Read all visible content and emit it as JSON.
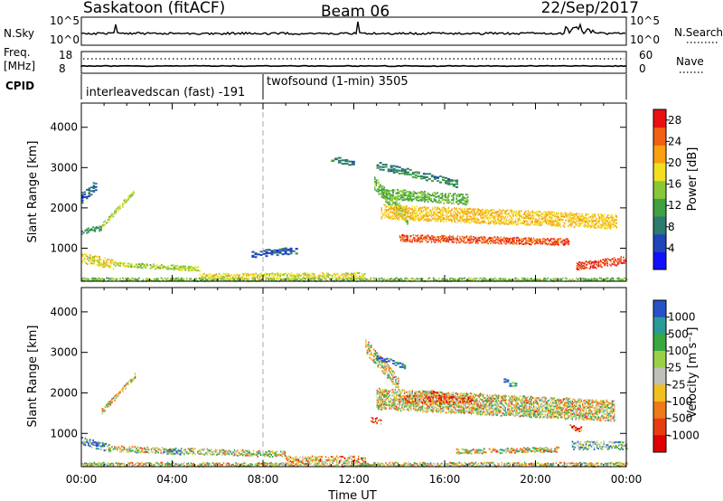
{
  "header": {
    "site_title": "Saskatoon (fitACF)",
    "beam": "Beam 06",
    "date": "22/Sep/2017"
  },
  "nsky_panel": {
    "left_label": "N.Sky",
    "right_label": "N.Search",
    "left_ticks": [
      "10^5",
      "10^0"
    ],
    "right_ticks": [
      "10^5",
      "10^0"
    ]
  },
  "freq_panel": {
    "left_label_line1": "Freq.",
    "left_label_line2": "[MHz]",
    "left_ticks": [
      "18",
      "8"
    ],
    "right_ticks": [
      "60",
      "0"
    ],
    "right_label": "Nave"
  },
  "cpid_panel": {
    "label": "CPID",
    "segments": [
      {
        "name": "interleavedscan (fast) -191",
        "start_hour": 0
      },
      {
        "name": "twofsound (1-min) 3505",
        "start_hour": 8
      }
    ]
  },
  "colors": {
    "power_scale": [
      "#1010ff",
      "#1f45b8",
      "#2c7a70",
      "#3fa040",
      "#88c838",
      "#f0e020",
      "#f8a010",
      "#f06010",
      "#e81010"
    ],
    "velocity_scale": [
      "#2850c8",
      "#2a9a98",
      "#3aa840",
      "#9ad048",
      "#c0c0b8",
      "#f0c020",
      "#f07818",
      "#e83c10",
      "#e00000"
    ]
  },
  "chart_data": [
    {
      "type": "heatmap",
      "name": "power",
      "xlabel": "",
      "ylabel": "Slant Range [km]",
      "x_unit": "hour UT",
      "xlim": [
        0,
        24
      ],
      "ylim": [
        180,
        4600
      ],
      "y_ticks": [
        1000,
        2000,
        3000,
        4000
      ],
      "colorbar": {
        "label": "Power [dB]",
        "ticks": [
          "4",
          "8",
          "12",
          "16",
          "20",
          "24",
          "28"
        ],
        "range": [
          0,
          30
        ]
      },
      "features": [
        {
          "t0": 0.0,
          "t1": 24.0,
          "r_start": 180,
          "r_end": 180,
          "width": 160,
          "value": 14,
          "step": 0.06
        },
        {
          "t0": 0.0,
          "t1": 0.9,
          "r_start": 1400,
          "r_end": 1500,
          "width": 140,
          "value": 10,
          "step": 0.07
        },
        {
          "t0": 0.9,
          "t1": 2.4,
          "r_start": 1550,
          "r_end": 2450,
          "width": 120,
          "value": 16,
          "step": 0.06
        },
        {
          "t0": 0.0,
          "t1": 0.7,
          "r_start": 2250,
          "r_end": 2600,
          "width": 250,
          "value": 6,
          "step": 0.1
        },
        {
          "t0": 0.0,
          "t1": 1.4,
          "r_start": 750,
          "r_end": 600,
          "width": 250,
          "value": 18,
          "step": 0.06
        },
        {
          "t0": 1.4,
          "t1": 5.2,
          "r_start": 600,
          "r_end": 480,
          "width": 120,
          "value": 16,
          "step": 0.07
        },
        {
          "t0": 5.2,
          "t1": 12.5,
          "r_start": 300,
          "r_end": 320,
          "width": 140,
          "value": 18,
          "step": 0.06
        },
        {
          "t0": 12.9,
          "t1": 14.4,
          "r_start": 2600,
          "r_end": 1700,
          "width": 320,
          "value": 14,
          "step": 0.06
        },
        {
          "t0": 13.2,
          "t1": 23.6,
          "r_start": 1900,
          "r_end": 1650,
          "width": 360,
          "value": 20,
          "step": 0.05
        },
        {
          "t0": 14.0,
          "t1": 21.5,
          "r_start": 1250,
          "r_end": 1150,
          "width": 170,
          "value": 26,
          "step": 0.05
        },
        {
          "t0": 13.2,
          "t1": 17.0,
          "r_start": 2350,
          "r_end": 2200,
          "width": 260,
          "value": 13,
          "step": 0.07
        },
        {
          "t0": 13.0,
          "t1": 16.5,
          "r_start": 3050,
          "r_end": 2600,
          "width": 180,
          "value": 9,
          "step": 0.12
        },
        {
          "t0": 21.8,
          "t1": 24.0,
          "r_start": 550,
          "r_end": 700,
          "width": 200,
          "value": 27,
          "step": 0.05
        },
        {
          "t0": 11.0,
          "t1": 12.0,
          "r_start": 3200,
          "r_end": 3100,
          "width": 150,
          "value": 8,
          "step": 0.15
        },
        {
          "t0": 7.5,
          "t1": 9.5,
          "r_start": 850,
          "r_end": 950,
          "width": 160,
          "value": 6,
          "step": 0.12
        }
      ]
    },
    {
      "type": "heatmap",
      "name": "velocity",
      "xlabel": "Time UT",
      "ylabel": "Slant Range [km]",
      "x_unit": "hour UT",
      "xlim": [
        0,
        24
      ],
      "ylim": [
        180,
        4600
      ],
      "x_ticks": [
        "00:00",
        "04:00",
        "08:00",
        "12:00",
        "16:00",
        "20:00",
        "00:00"
      ],
      "y_ticks": [
        1000,
        2000,
        3000,
        4000
      ],
      "colorbar": {
        "label": "Velocity [m s⁻¹]",
        "ticks": [
          "1000",
          "500",
          "100",
          "25",
          "-25",
          "-100",
          "-500",
          "-1000"
        ]
      },
      "features": [
        {
          "t0": 0.0,
          "t1": 24.0,
          "r_start": 200,
          "r_end": 200,
          "width": 160,
          "value": 0,
          "step": 0.06
        },
        {
          "t0": 0.9,
          "t1": 2.4,
          "r_start": 1550,
          "r_end": 2450,
          "width": 130,
          "value": 0,
          "step": 0.06
        },
        {
          "t0": 0.0,
          "t1": 1.2,
          "r_start": 800,
          "r_end": 650,
          "width": 200,
          "value": 3,
          "step": 0.07
        },
        {
          "t0": 1.2,
          "t1": 9.0,
          "r_start": 620,
          "r_end": 480,
          "width": 150,
          "value": 0,
          "step": 0.06
        },
        {
          "t0": 3.6,
          "t1": 4.4,
          "r_start": 560,
          "r_end": 520,
          "width": 130,
          "value": 3,
          "step": 0.08
        },
        {
          "t0": 9.0,
          "t1": 12.5,
          "r_start": 360,
          "r_end": 360,
          "width": 150,
          "value": -1,
          "step": 0.06
        },
        {
          "t0": 12.5,
          "t1": 14.0,
          "r_start": 3150,
          "r_end": 2200,
          "width": 350,
          "value": 0,
          "step": 0.06
        },
        {
          "t0": 13.0,
          "t1": 23.5,
          "r_start": 1850,
          "r_end": 1550,
          "width": 520,
          "value": 0,
          "step": 0.05
        },
        {
          "t0": 14.2,
          "t1": 17.2,
          "r_start": 1850,
          "r_end": 1800,
          "width": 200,
          "value": -2,
          "step": 0.06
        },
        {
          "t0": 12.75,
          "t1": 13.2,
          "r_start": 1350,
          "r_end": 1300,
          "width": 150,
          "value": -2,
          "step": 0.06
        },
        {
          "t0": 15.4,
          "t1": 16.0,
          "r_start": 2000,
          "r_end": 1900,
          "width": 150,
          "value": -3,
          "step": 0.08
        },
        {
          "t0": 13.0,
          "t1": 14.2,
          "r_start": 2900,
          "r_end": 2650,
          "width": 120,
          "value": 4,
          "step": 0.1
        },
        {
          "t0": 18.6,
          "t1": 19.2,
          "r_start": 2300,
          "r_end": 2150,
          "width": 150,
          "value": 3,
          "step": 0.12
        },
        {
          "t0": 21.6,
          "t1": 24.0,
          "r_start": 700,
          "r_end": 700,
          "width": 200,
          "value": 2,
          "step": 0.06
        },
        {
          "t0": 21.5,
          "t1": 22.0,
          "r_start": 1150,
          "r_end": 1100,
          "width": 120,
          "value": -4,
          "step": 0.08
        },
        {
          "t0": 16.5,
          "t1": 21.0,
          "r_start": 550,
          "r_end": 600,
          "width": 120,
          "value": 0,
          "step": 0.08
        }
      ]
    }
  ]
}
